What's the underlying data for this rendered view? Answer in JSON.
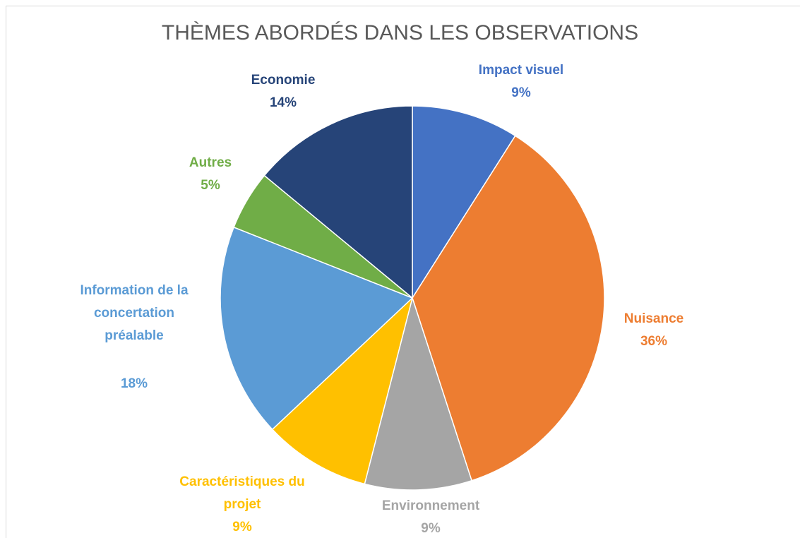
{
  "chart_data": {
    "type": "pie",
    "title": "THÈMES ABORDÉS DANS LES OBSERVATIONS",
    "categories": [
      "Impact visuel",
      "Nuisance",
      "Environnement",
      "Caractéristiques du projet",
      "Information de la concertation préalable",
      "Autres",
      "Economie"
    ],
    "values": [
      9,
      36,
      9,
      9,
      18,
      5,
      14
    ],
    "value_labels": [
      "9%",
      "36%",
      "9%",
      "9%",
      "18%",
      "5%",
      "14%"
    ],
    "colors": [
      "#4472c4",
      "#ed7d31",
      "#a5a5a5",
      "#ffc000",
      "#5b9bd5",
      "#70ad47",
      "#264478"
    ]
  }
}
